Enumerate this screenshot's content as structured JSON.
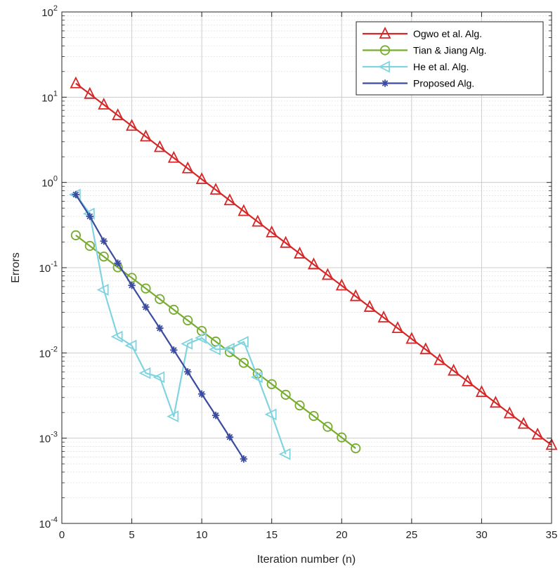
{
  "chart_data": {
    "type": "line",
    "xlabel": "Iteration number (n)",
    "ylabel": "Errors",
    "xlim": [
      0,
      35
    ],
    "ylim": [
      0.0001,
      100
    ],
    "y_scale": "log",
    "grid": true,
    "minor_grid": true,
    "legend_position": "top-right",
    "x_ticks": [
      "0",
      "5",
      "10",
      "15",
      "20",
      "25",
      "30",
      "35"
    ],
    "y_ticks": [
      {
        "value": 0.0001,
        "base": "10",
        "exp": "-4"
      },
      {
        "value": 0.001,
        "base": "10",
        "exp": "-3"
      },
      {
        "value": 0.01,
        "base": "10",
        "exp": "-2"
      },
      {
        "value": 0.1,
        "base": "10",
        "exp": "-1"
      },
      {
        "value": 1,
        "base": "10",
        "exp": "0"
      },
      {
        "value": 10,
        "base": "10",
        "exp": "1"
      },
      {
        "value": 100,
        "base": "10",
        "exp": "2"
      }
    ],
    "series": [
      {
        "name": "Ogwo et al. Alg.",
        "color": "#d62728",
        "marker": "triangle-up",
        "x": [
          1,
          2,
          3,
          4,
          5,
          6,
          7,
          8,
          9,
          10,
          11,
          12,
          13,
          14,
          15,
          16,
          17,
          18,
          19,
          20,
          21,
          22,
          23,
          24,
          25,
          26,
          27,
          28,
          29,
          30,
          31,
          32,
          33,
          34,
          35
        ],
        "y": [
          14.5,
          10.9,
          8.17,
          6.13,
          4.6,
          3.45,
          2.59,
          1.94,
          1.46,
          1.09,
          0.82,
          0.615,
          0.461,
          0.346,
          0.259,
          0.195,
          0.146,
          0.109,
          0.082,
          0.0616,
          0.0462,
          0.0346,
          0.026,
          0.0195,
          0.0146,
          0.011,
          0.00822,
          0.00617,
          0.00463,
          0.00347,
          0.0026,
          0.00195,
          0.00147,
          0.0011,
          0.00083
        ]
      },
      {
        "name": "Tian & Jiang Alg.",
        "color": "#77ac30",
        "marker": "circle",
        "x": [
          1,
          2,
          3,
          4,
          5,
          6,
          7,
          8,
          9,
          10,
          11,
          12,
          13,
          14,
          15,
          16,
          17,
          18,
          19,
          20,
          21
        ],
        "y": [
          0.24,
          0.18,
          0.135,
          0.101,
          0.076,
          0.057,
          0.0428,
          0.0321,
          0.0241,
          0.0181,
          0.0136,
          0.0102,
          0.00765,
          0.00574,
          0.0043,
          0.00323,
          0.00242,
          0.00182,
          0.00136,
          0.00102,
          0.00076
        ]
      },
      {
        "name": "He et al. Alg.",
        "color": "#80d4e0",
        "marker": "triangle-left",
        "x": [
          1,
          2,
          3,
          4,
          5,
          6,
          7,
          8,
          9,
          10,
          11,
          12,
          13,
          14,
          15,
          16
        ],
        "y": [
          0.72,
          0.43,
          0.055,
          0.0155,
          0.0122,
          0.0058,
          0.0052,
          0.0018,
          0.0128,
          0.015,
          0.011,
          0.0112,
          0.0135,
          0.0052,
          0.0019,
          0.00065
        ]
      },
      {
        "name": "Proposed Alg.",
        "color": "#3b4ba0",
        "marker": "asterisk",
        "x": [
          1,
          2,
          3,
          4,
          5,
          6,
          7,
          8,
          9,
          10,
          11,
          12,
          13
        ],
        "y": [
          0.72,
          0.4,
          0.205,
          0.113,
          0.062,
          0.0345,
          0.0195,
          0.0108,
          0.006,
          0.0033,
          0.00185,
          0.00103,
          0.00057
        ]
      }
    ]
  }
}
